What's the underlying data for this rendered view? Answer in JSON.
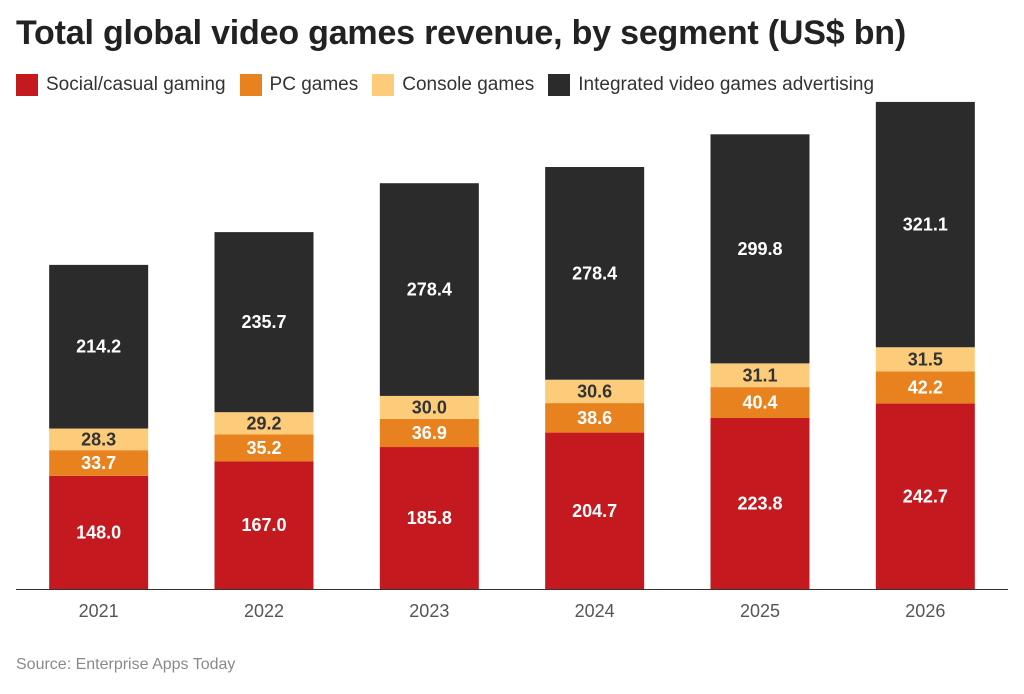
{
  "title": "Total global video games revenue, by segment (US$ bn)",
  "source": "Source: Enterprise Apps Today",
  "chart_data": {
    "type": "bar",
    "stacked": true,
    "categories": [
      "2021",
      "2022",
      "2023",
      "2024",
      "2025",
      "2026"
    ],
    "series": [
      {
        "name": "Social/casual gaming",
        "color": "#c4191e",
        "values": [
          148.0,
          167.0,
          185.8,
          204.7,
          223.8,
          242.7
        ]
      },
      {
        "name": "PC games",
        "color": "#e8821f",
        "values": [
          33.7,
          35.2,
          36.9,
          38.6,
          40.4,
          42.2
        ]
      },
      {
        "name": "Console games",
        "color": "#fdcc7b",
        "values": [
          28.3,
          29.2,
          30.0,
          30.6,
          31.1,
          31.5
        ]
      },
      {
        "name": "Integrated video games advertising",
        "color": "#2b2b2b",
        "values": [
          214.2,
          235.7,
          278.4,
          278.4,
          299.8,
          321.1
        ]
      }
    ],
    "value_labels": [
      [
        "148.0",
        "167.0",
        "185.8",
        "204.7",
        "223.8",
        "242.7"
      ],
      [
        "33.7",
        "35.2",
        "36.9",
        "38.6",
        "40.4",
        "42.2"
      ],
      [
        "28.3",
        "29.2",
        "30.0",
        "30.6",
        "31.1",
        "31.5"
      ],
      [
        "214.2",
        "235.7",
        "278.4",
        "278.4",
        "299.8",
        "321.1"
      ]
    ],
    "label_colors": [
      "#ffffff",
      "#ffffff",
      "#333333",
      "#ffffff"
    ],
    "ylim": [
      0,
      640
    ],
    "grid": false,
    "legend_position": "top-left",
    "xlabel": "",
    "ylabel": ""
  }
}
